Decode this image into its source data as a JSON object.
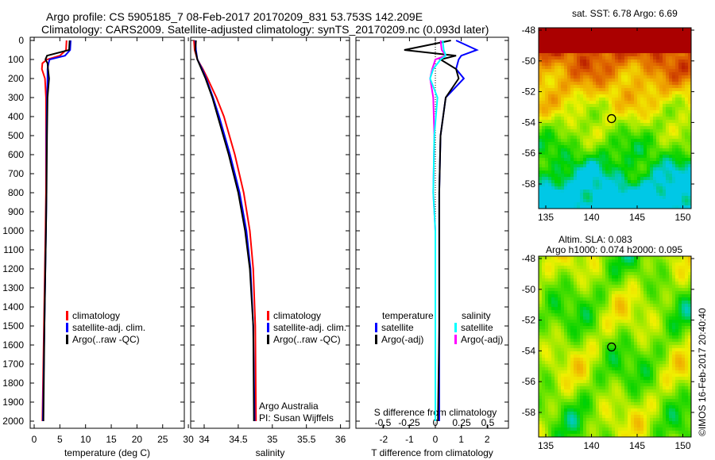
{
  "title": {
    "line1": "Argo profile: CS 5905185_7 08-Feb-2017 20170209_831 53.753S 142.209E",
    "line2": "Climatology: CARS2009. Satellite-adjusted climatology: synTS_20170209.nc (0.093d later)"
  },
  "colors": {
    "climatology": "#ff0000",
    "satellite": "#0000ff",
    "argo": "#000000",
    "sal_sat": "#00ffff",
    "sal_argo": "#ff00ff"
  },
  "chart_data": [
    {
      "type": "line",
      "xlabel": "temperature (deg C)",
      "ylabel": "",
      "xlim": [
        -1,
        31
      ],
      "ylim": [
        2050,
        0
      ],
      "xticks": [
        "0",
        "5",
        "10",
        "15",
        "20",
        "25",
        "30"
      ],
      "yticks": [
        "0",
        "100",
        "200",
        "300",
        "400",
        "500",
        "600",
        "700",
        "800",
        "900",
        "1000",
        "1100",
        "1200",
        "1300",
        "1400",
        "1500",
        "1600",
        "1700",
        "1800",
        "1900",
        "2000"
      ],
      "legend": [
        "climatology",
        "satellite-adj. clim.",
        "Argo(..raw -QC)"
      ],
      "depth": [
        0,
        50,
        80,
        100,
        120,
        150,
        200,
        300,
        500,
        800,
        1000,
        1500,
        2000
      ],
      "series": [
        {
          "name": "climatology",
          "values": [
            6.3,
            6.2,
            5,
            2.5,
            1.6,
            1.5,
            2.1,
            2.3,
            2.3,
            2.3,
            2.2,
            1.9,
            1.6
          ]
        },
        {
          "name": "satellite-adj. clim.",
          "values": [
            7.1,
            7,
            6,
            3,
            2.8,
            2.6,
            2.6,
            2.5,
            2.4,
            2.4,
            2.3,
            2.0,
            1.7
          ]
        },
        {
          "name": "Argo(..raw -QC)",
          "values": [
            6.9,
            6.8,
            2.5,
            2.2,
            2.6,
            2.7,
            2.9,
            2.6,
            2.5,
            2.4,
            2.3,
            2.0,
            1.8
          ]
        }
      ]
    },
    {
      "type": "line",
      "xlabel": "salinity",
      "xlim": [
        33.8,
        36.1
      ],
      "ylim": [
        2050,
        0
      ],
      "xticks": [
        "34",
        "34.5",
        "35",
        "35.5",
        "36"
      ],
      "legend": [
        "climatology",
        "satellite-adj. clim.",
        "Argo(..raw -QC)"
      ],
      "annotation": [
        "Argo Australia",
        "PI: Susan Wijffels"
      ],
      "depth": [
        0,
        50,
        100,
        150,
        200,
        300,
        400,
        600,
        800,
        1000,
        1200,
        1500,
        2000
      ],
      "series": [
        {
          "name": "climatology",
          "values": [
            33.85,
            33.86,
            33.9,
            33.98,
            34.05,
            34.18,
            34.29,
            34.45,
            34.58,
            34.67,
            34.72,
            34.75,
            34.76
          ]
        },
        {
          "name": "satellite-adj. clim.",
          "values": [
            33.87,
            33.88,
            33.9,
            33.97,
            34.03,
            34.13,
            34.22,
            34.38,
            34.52,
            34.62,
            34.68,
            34.72,
            34.74
          ]
        },
        {
          "name": "Argo(..raw -QC)",
          "values": [
            33.88,
            33.87,
            33.9,
            33.96,
            34.02,
            34.12,
            34.2,
            34.36,
            34.5,
            34.6,
            34.67,
            34.72,
            34.73
          ]
        }
      ]
    },
    {
      "type": "line",
      "xlabel": "T difference from climatology",
      "x2label": "S difference from climatology",
      "xlim": [
        -3.1,
        2.9
      ],
      "ylim": [
        2050,
        0
      ],
      "xticks": [
        "-2",
        "-1",
        "0",
        "1",
        "2"
      ],
      "x2ticks": [
        "-0.5",
        "-0.25",
        "0",
        "0.25",
        "0.5"
      ],
      "legend": {
        "temperature": "temperature",
        "salinity": "salinity",
        "t_sat": "satellite",
        "t_argo": "Argo(-adj)",
        "s_sat": "satellite",
        "s_argo": "Argo(-adj)"
      },
      "depth": [
        0,
        50,
        80,
        100,
        150,
        200,
        300,
        500,
        800,
        1000,
        1500,
        2000
      ],
      "series": [
        {
          "name": "T satellite",
          "values": [
            0.8,
            1.6,
            1.0,
            0.9,
            0.8,
            1.1,
            0.4,
            0.2,
            0.15,
            0.15,
            0.15,
            0.15
          ]
        },
        {
          "name": "T Argo(-adj)",
          "values": [
            0.6,
            -1.2,
            0.8,
            0.2,
            0.8,
            0.9,
            0.4,
            0.2,
            0.15,
            0.15,
            0.15,
            0.1
          ]
        },
        {
          "name": "S satellite",
          "values": [
            0.07,
            0.08,
            0.1,
            0.05,
            -0.02,
            -0.05,
            0.02,
            -0.01,
            -0.02,
            0,
            0,
            0
          ]
        },
        {
          "name": "S Argo(-adj)",
          "values": [
            0.05,
            0.06,
            0.1,
            0.0,
            -0.03,
            -0.05,
            -0.02,
            -0.01,
            -0.02,
            0,
            0,
            0
          ]
        }
      ]
    },
    {
      "type": "heatmap",
      "title": "sat. SST: 6.78 Argo: 6.69",
      "xticks": [
        "135",
        "140",
        "145",
        "150"
      ],
      "yticks": [
        "-48",
        "-50",
        "-52",
        "-54",
        "-56",
        "-58"
      ],
      "marker": {
        "lon": 142.2,
        "lat": -53.75
      }
    },
    {
      "type": "heatmap",
      "title": "Altim. SLA: 0.083",
      "subtitle": "Argo h1000: 0.074 h2000: 0.095",
      "xticks": [
        "135",
        "140",
        "145",
        "150"
      ],
      "yticks": [
        "-48",
        "-50",
        "-52",
        "-54",
        "-56",
        "-58"
      ],
      "marker": {
        "lon": 142.2,
        "lat": -53.75
      }
    }
  ],
  "credit": "©IMOS 16-Feb-2017 20:40:40"
}
